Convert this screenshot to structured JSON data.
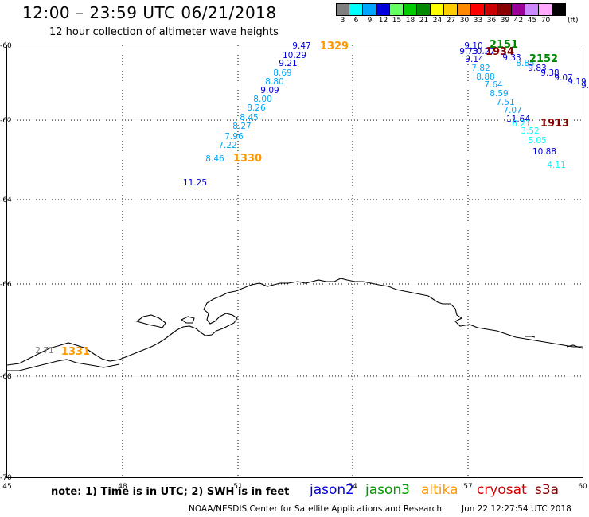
{
  "header": {
    "title": "12:00 – 23:59 UTC 06/21/2018",
    "subtitle": "12 hour collection of altimeter wave heights"
  },
  "legend": {
    "unit": "(ft)",
    "bins": [
      {
        "label": "3",
        "color": "#7f7f7f"
      },
      {
        "label": "6",
        "color": "#00ffff"
      },
      {
        "label": "9",
        "color": "#00a6ff"
      },
      {
        "label": "12",
        "color": "#0000dd"
      },
      {
        "label": "15",
        "color": "#66ff66"
      },
      {
        "label": "18",
        "color": "#00cc00"
      },
      {
        "label": "21",
        "color": "#008800"
      },
      {
        "label": "24",
        "color": "#ffff00"
      },
      {
        "label": "27",
        "color": "#ffcc00"
      },
      {
        "label": "30",
        "color": "#ff8800"
      },
      {
        "label": "33",
        "color": "#ff0000"
      },
      {
        "label": "36",
        "color": "#cc0000"
      },
      {
        "label": "39",
        "color": "#880000"
      },
      {
        "label": "42",
        "color": "#990099"
      },
      {
        "label": "45",
        "color": "#cc88ff"
      },
      {
        "label": "70",
        "color": "#ffaaff"
      },
      {
        "label": "",
        "color": "#000000"
      }
    ]
  },
  "axes": {
    "lat_labels": [
      "-60",
      "-62",
      "-64",
      "-66",
      "-68",
      "-70"
    ],
    "lon_labels": [
      "45",
      "48",
      "51",
      "54",
      "57",
      "60"
    ]
  },
  "tracks": [
    {
      "id": "1329",
      "mission": "altika",
      "color": "#ff9900",
      "points": [
        {
          "v": "9.47",
          "c": "#0000dd"
        },
        {
          "v": "10.29",
          "c": "#0000dd"
        },
        {
          "v": "9.21",
          "c": "#0000dd"
        },
        {
          "v": "8.69",
          "c": "#00a6ff"
        },
        {
          "v": "8.80",
          "c": "#00a6ff"
        },
        {
          "v": "9.09",
          "c": "#0000dd"
        },
        {
          "v": "8.00",
          "c": "#00a6ff"
        },
        {
          "v": "8.26",
          "c": "#00a6ff"
        },
        {
          "v": "8.45",
          "c": "#00a6ff"
        },
        {
          "v": "8.27",
          "c": "#00a6ff"
        },
        {
          "v": "7.96",
          "c": "#00a6ff"
        },
        {
          "v": "7.22",
          "c": "#00a6ff"
        },
        {
          "v": "8.46",
          "c": "#00a6ff"
        },
        {
          "v": "11.25",
          "c": "#0000dd"
        }
      ]
    },
    {
      "id": "1330",
      "mission": "altika",
      "color": "#ff9900",
      "points": []
    },
    {
      "id": "1331",
      "mission": "altika",
      "color": "#ff9900",
      "points": [
        {
          "v": "2.71",
          "c": "#7f7f7f"
        }
      ]
    },
    {
      "id": "2151",
      "mission": "jason3",
      "color": "#008800",
      "points": [
        {
          "v": "9.10",
          "c": "#0000dd"
        },
        {
          "v": "9.73",
          "c": "#0000dd"
        },
        {
          "v": "10.27",
          "c": "#0000dd"
        },
        {
          "v": "9.14",
          "c": "#0000dd"
        },
        {
          "v": "7.82",
          "c": "#00a6ff"
        },
        {
          "v": "8.88",
          "c": "#00a6ff"
        },
        {
          "v": "7.64",
          "c": "#00a6ff"
        },
        {
          "v": "8.59",
          "c": "#00a6ff"
        },
        {
          "v": "7.51",
          "c": "#00a6ff"
        },
        {
          "v": "7.07",
          "c": "#00a6ff"
        },
        {
          "v": "11.64",
          "c": "#0000dd"
        },
        {
          "v": "6.21",
          "c": "#00ffff"
        },
        {
          "v": "3.52",
          "c": "#00ffff"
        },
        {
          "v": "5.05",
          "c": "#00ffff"
        },
        {
          "v": "10.88",
          "c": "#0000dd"
        },
        {
          "v": "4.11",
          "c": "#00ffff"
        }
      ]
    },
    {
      "id": "1934",
      "mission": "cryosat",
      "color": "#880000",
      "points": []
    },
    {
      "id": "2152",
      "mission": "jason3",
      "color": "#008800",
      "points": [
        {
          "v": "9.33",
          "c": "#0000dd"
        },
        {
          "v": "8.85",
          "c": "#00a6ff"
        },
        {
          "v": "9.83",
          "c": "#0000dd"
        },
        {
          "v": "9.38",
          "c": "#0000dd"
        },
        {
          "v": "9.07",
          "c": "#0000dd"
        },
        {
          "v": "9.19",
          "c": "#0000dd"
        },
        {
          "v": "9.",
          "c": "#0000dd"
        }
      ]
    },
    {
      "id": "1913",
      "mission": "cryosat",
      "color": "#880000",
      "points": []
    }
  ],
  "footer": {
    "note": "note:  1) Time is in UTC;  2) SWH is in feet",
    "missions": [
      {
        "name": "jason2",
        "color": "#0000dd"
      },
      {
        "name": "jason3",
        "color": "#009900"
      },
      {
        "name": "altika",
        "color": "#ff9900"
      },
      {
        "name": "cryosat",
        "color": "#cc0000"
      },
      {
        "name": "s3a",
        "color": "#880000"
      }
    ],
    "credit": "NOAA/NESDIS Center for Satellite Applications and Research",
    "timestamp": "Jun 22 12:27:54 UTC 2018"
  }
}
